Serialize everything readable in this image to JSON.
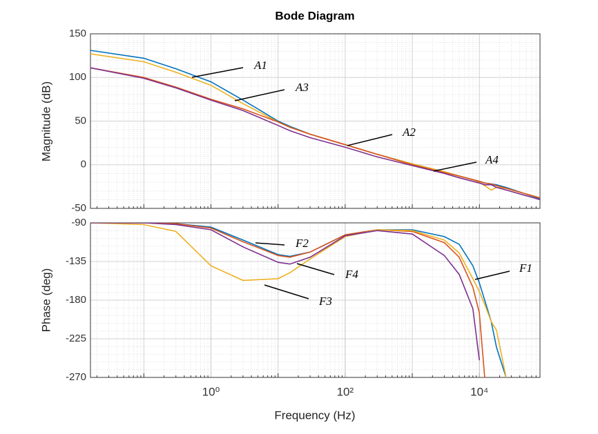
{
  "chart_data": [
    {
      "type": "line",
      "title": "Bode Diagram",
      "ylabel": "Magnitude (dB)",
      "xscale": "log",
      "grid": true,
      "xlim": [
        0.016,
        80000
      ],
      "ylim": [
        -50,
        150
      ],
      "yticks": [
        -50,
        0,
        50,
        100,
        150
      ],
      "x": [
        0.016,
        0.1,
        0.3,
        1,
        3,
        10,
        15,
        30,
        100,
        300,
        1000,
        3000,
        5000,
        8000,
        10000,
        12000,
        15000,
        18000,
        25000,
        80000
      ],
      "series": [
        {
          "name": "A1",
          "color": "#0072bd",
          "values": [
            131,
            122,
            110,
            95,
            74,
            50,
            44,
            35,
            23,
            12,
            1,
            -8,
            -13,
            -17,
            -19,
            -21,
            -22,
            -23,
            -26,
            -39
          ]
        },
        {
          "name": "A3",
          "color": "#edb120",
          "values": [
            127,
            118,
            106,
            91,
            70,
            49,
            43,
            35,
            23,
            12,
            1,
            -8,
            -13,
            -17,
            -20,
            -24,
            -29,
            -26,
            -27,
            -38
          ]
        },
        {
          "name": "A2",
          "color": "#d95319",
          "values": [
            111,
            100,
            89,
            75,
            64,
            49,
            43,
            35,
            23,
            12,
            0,
            -9,
            -13,
            -17,
            -19,
            -21,
            -22,
            -24,
            -27,
            -38
          ]
        },
        {
          "name": "A4",
          "color": "#7e2f8e",
          "values": [
            111,
            99,
            88,
            74,
            62,
            45,
            39,
            31,
            20,
            9,
            -1,
            -10,
            -15,
            -19,
            -21,
            -23,
            -23,
            -26,
            -29,
            -40
          ]
        }
      ]
    },
    {
      "type": "line",
      "ylabel": "Phase (deg)",
      "xlabel": "Frequency  (Hz)",
      "xscale": "log",
      "grid": true,
      "xlim": [
        0.016,
        80000
      ],
      "ylim": [
        -270,
        -90
      ],
      "yticks": [
        -270,
        -225,
        -180,
        -135,
        -90
      ],
      "xticks": [
        {
          "value": 1,
          "label": "10⁰"
        },
        {
          "value": 100,
          "label": "10²"
        },
        {
          "value": 10000,
          "label": "10⁴"
        }
      ],
      "x": [
        0.016,
        0.1,
        0.3,
        1,
        3,
        10,
        15,
        30,
        100,
        300,
        1000,
        3000,
        5000,
        8000,
        10000,
        12000,
        15000,
        18000,
        25000,
        80000
      ],
      "series": [
        {
          "name": "F1",
          "color": "#0072bd",
          "values": [
            -90,
            -90,
            -91,
            -95,
            -110,
            -127,
            -129,
            -124,
            -104,
            -98,
            -98,
            -106,
            -115,
            -140,
            -160,
            -180,
            -205,
            -235,
            -270,
            null
          ]
        },
        {
          "name": "F2",
          "color": "#d95319",
          "values": [
            -90,
            -90,
            -91,
            -96,
            -112,
            -128,
            -130,
            -124,
            -104,
            -98,
            -100,
            -113,
            -130,
            -165,
            -195,
            -270,
            null,
            null,
            null,
            null
          ]
        },
        {
          "name": "F3",
          "color": "#edb120",
          "values": [
            -90,
            -92,
            -100,
            -140,
            -157,
            -155,
            -148,
            -132,
            -106,
            -98,
            -99,
            -110,
            -125,
            -155,
            -170,
            -185,
            -205,
            -215,
            -270,
            null
          ]
        },
        {
          "name": "F4",
          "color": "#7e2f8e",
          "values": [
            -90,
            -90,
            -92,
            -98,
            -118,
            -136,
            -138,
            -130,
            -105,
            -99,
            -103,
            -128,
            -150,
            -190,
            -250,
            null,
            null,
            null,
            null,
            null
          ]
        }
      ]
    }
  ]
}
